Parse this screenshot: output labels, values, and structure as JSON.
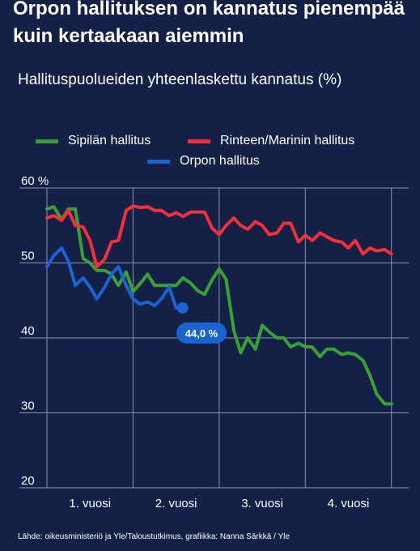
{
  "header": {
    "title": "Orpon hallituksen on kannatus pienempää kuin kertaakaan aiemmin",
    "subtitle": "Hallituspuolueiden yhteenlaskettu kannatus (%)"
  },
  "colors": {
    "background": "#142046",
    "sipila": "#3aa035",
    "marin": "#f2303a",
    "orpo": "#1a63d1",
    "grid": "#8a93ad"
  },
  "legend": [
    {
      "label": "Sipilän hallitus",
      "color": "#3aa035"
    },
    {
      "label": "Rinteen/Marinin hallitus",
      "color": "#f2303a"
    },
    {
      "label": "Orpon hallitus",
      "color": "#1a63d1"
    }
  ],
  "source": "Lähde: oikeusministeriö ja Yle/Taloustutkimus, grafiikka: Nanna Särkkä / Yle",
  "chart_data": {
    "type": "line",
    "y_unit": "%",
    "ylim": [
      20,
      60
    ],
    "yticks": [
      20,
      30,
      40,
      50,
      60
    ],
    "xlim": [
      0,
      4.2
    ],
    "xticks": [
      {
        "value": 0.5,
        "label": "1. vuosi"
      },
      {
        "value": 1.5,
        "label": "2. vuosi"
      },
      {
        "value": 2.5,
        "label": "3. vuosi"
      },
      {
        "value": 3.5,
        "label": "4. vuosi"
      }
    ],
    "xgrid": [
      0,
      1,
      2,
      3,
      4
    ],
    "grid": true,
    "series": [
      {
        "name": "Sipilän hallitus",
        "color": "#3aa035",
        "x": [
          0,
          0.08,
          0.17,
          0.25,
          0.33,
          0.42,
          0.5,
          0.58,
          0.67,
          0.75,
          0.83,
          0.92,
          1.0,
          1.08,
          1.17,
          1.25,
          1.33,
          1.42,
          1.5,
          1.58,
          1.67,
          1.75,
          1.83,
          1.92,
          2.0,
          2.08,
          2.17,
          2.25,
          2.33,
          2.42,
          2.5,
          2.58,
          2.67,
          2.75,
          2.83,
          2.92,
          3.0,
          3.08,
          3.17,
          3.25,
          3.33,
          3.42,
          3.5,
          3.58,
          3.67,
          3.75,
          3.83,
          3.92,
          4.0
        ],
        "y": [
          57.2,
          57.5,
          55.8,
          57.2,
          57.2,
          50.6,
          50.0,
          49.0,
          49.0,
          48.5,
          47.0,
          48.8,
          46.2,
          47.2,
          48.5,
          47.0,
          47.0,
          47.0,
          47.0,
          48.0,
          47.3,
          46.3,
          45.8,
          47.8,
          49.2,
          47.8,
          41.0,
          38.0,
          40.0,
          38.5,
          41.7,
          40.8,
          40.0,
          40.0,
          38.8,
          39.3,
          38.8,
          38.8,
          37.5,
          38.5,
          38.5,
          37.8,
          38.0,
          37.8,
          37.0,
          35.0,
          32.5,
          31.2,
          31.2
        ],
        "end": "last"
      },
      {
        "name": "Rinteen/Marinin hallitus",
        "color": "#f2303a",
        "x": [
          0,
          0.08,
          0.17,
          0.25,
          0.33,
          0.42,
          0.5,
          0.58,
          0.67,
          0.75,
          0.83,
          0.92,
          1.0,
          1.08,
          1.17,
          1.25,
          1.33,
          1.42,
          1.5,
          1.58,
          1.67,
          1.75,
          1.83,
          1.92,
          2.0,
          2.08,
          2.17,
          2.25,
          2.33,
          2.42,
          2.5,
          2.58,
          2.67,
          2.75,
          2.83,
          2.92,
          3.0,
          3.08,
          3.17,
          3.25,
          3.33,
          3.42,
          3.5,
          3.58,
          3.67,
          3.75,
          3.83,
          3.92,
          4.0
        ],
        "y": [
          56.0,
          56.3,
          55.7,
          57.0,
          55.0,
          54.8,
          53.0,
          49.5,
          50.5,
          52.8,
          53.0,
          57.0,
          57.6,
          57.4,
          57.5,
          57.0,
          57.0,
          56.3,
          56.7,
          56.2,
          56.8,
          56.8,
          56.8,
          54.6,
          53.8,
          55.0,
          56.0,
          55.0,
          54.5,
          55.5,
          55.0,
          53.8,
          54.0,
          55.3,
          55.3,
          52.8,
          53.7,
          53.0,
          54.0,
          53.5,
          53.0,
          52.8,
          52.0,
          53.0,
          51.2,
          52.0,
          51.6,
          51.8,
          51.2
        ]
      },
      {
        "name": "Orpon hallitus",
        "color": "#1a63d1",
        "x": [
          0,
          0.08,
          0.17,
          0.25,
          0.33,
          0.42,
          0.5,
          0.58,
          0.67,
          0.75,
          0.83,
          0.92,
          1.0,
          1.08,
          1.17,
          1.25,
          1.33,
          1.42,
          1.5
        ],
        "y": [
          49.5,
          51.0,
          52.0,
          50.2,
          47.0,
          48.0,
          46.8,
          45.2,
          46.8,
          48.5,
          49.5,
          47.0,
          45.2,
          44.5,
          44.8,
          44.3,
          45.2,
          46.8,
          44.0
        ],
        "end_label": "44,0 %",
        "end": "last"
      }
    ]
  }
}
